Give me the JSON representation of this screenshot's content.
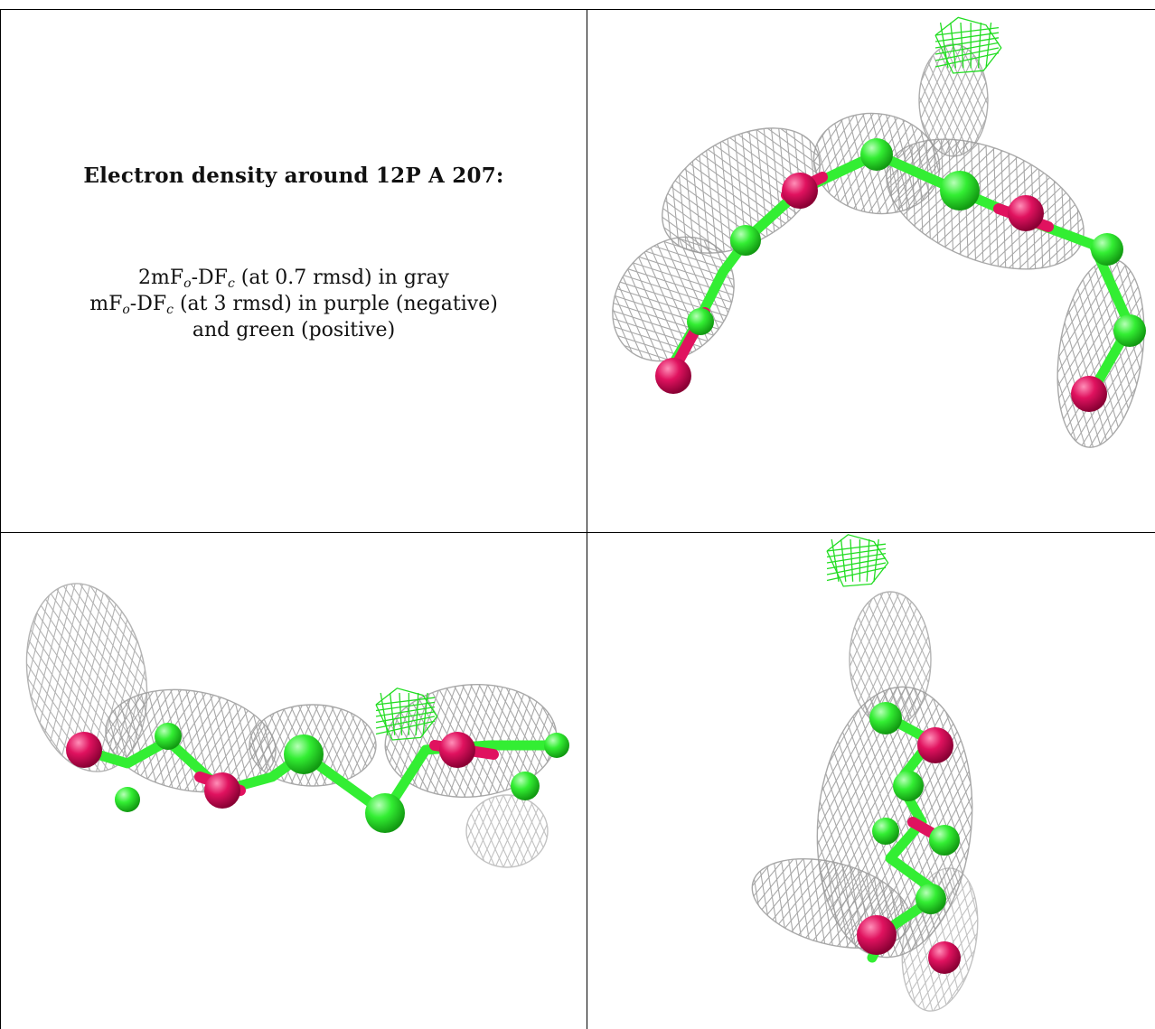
{
  "title": "Electron density around 12P A 207:",
  "legend": {
    "line1": {
      "pre": "2mF",
      "sub1": "o",
      "mid": "-DF",
      "sub2": "c",
      "post": " (at 0.7 rmsd) in gray"
    },
    "line2": {
      "pre": "mF",
      "sub1": "o",
      "mid": "-DF",
      "sub2": "c",
      "post": " (at 3 rmsd) in purple (negative)"
    },
    "line3": "and green (positive)"
  },
  "colors": {
    "mesh": "#9a9a9a",
    "carbon": "#33ee33",
    "oxygen": "#e0125f",
    "positive": "#22dd22"
  },
  "views": [
    {
      "name": "view-top-right"
    },
    {
      "name": "view-bottom-left"
    },
    {
      "name": "view-bottom-right"
    }
  ]
}
